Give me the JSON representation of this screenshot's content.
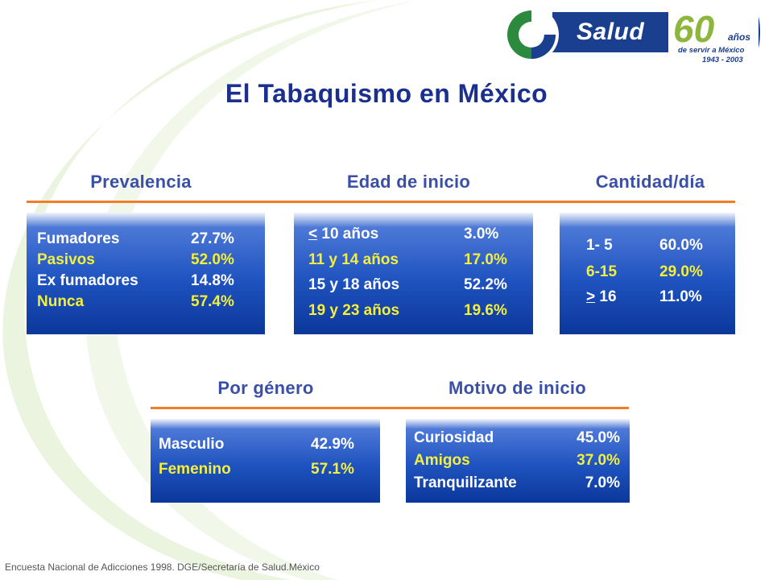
{
  "logo": {
    "brand": "Salud",
    "anniversary_number": "60",
    "anniversary_unit": "años",
    "tagline": "de servir a México",
    "years": "1943 - 2003"
  },
  "title": "El Tabaquismo en México",
  "colors": {
    "title": "#1a2f8e",
    "heading": "#3a4fa8",
    "rule": "#f07d27",
    "box_dark": "#0b379a",
    "text_white": "#ffffff",
    "text_yellow": "#f4ef3a"
  },
  "prevalencia": {
    "heading": "Prevalencia",
    "rows": [
      {
        "label": "Fumadores",
        "value": "27.7%"
      },
      {
        "label": "Pasivos",
        "value": "52.0%"
      },
      {
        "label": "Ex fumadores",
        "value": "14.8%"
      },
      {
        "label": "Nunca",
        "value": "57.4%"
      }
    ]
  },
  "edad": {
    "heading": "Edad de inicio",
    "rows": [
      {
        "mark": "<",
        "label": " 10 años",
        "value": "3.0%"
      },
      {
        "label": "11 y 14 años",
        "value": "17.0%"
      },
      {
        "label": "15 y 18 años",
        "value": "52.2%"
      },
      {
        "label": "19 y 23 años",
        "value": "19.6%"
      }
    ]
  },
  "cantidad": {
    "heading": "Cantidad/día",
    "rows": [
      {
        "label": "1- 5",
        "value": "60.0%"
      },
      {
        "label": "6-15",
        "value": "29.0%"
      },
      {
        "mark": ">",
        "label": " 16",
        "value": "11.0%"
      }
    ]
  },
  "genero": {
    "heading": "Por género",
    "rows": [
      {
        "label": "Masculio",
        "value": "42.9%"
      },
      {
        "label": "Femenino",
        "value": "57.1%"
      }
    ]
  },
  "motivo": {
    "heading": "Motivo de inicio",
    "rows": [
      {
        "label": "Curiosidad",
        "value": "45.0%"
      },
      {
        "label": "Amigos",
        "value": "37.0%"
      },
      {
        "label": "Tranquilizante",
        "value": "7.0%"
      }
    ]
  },
  "footer": "Encuesta Nacional de Adicciones 1998. DGE/Secretaría de Salud.México"
}
